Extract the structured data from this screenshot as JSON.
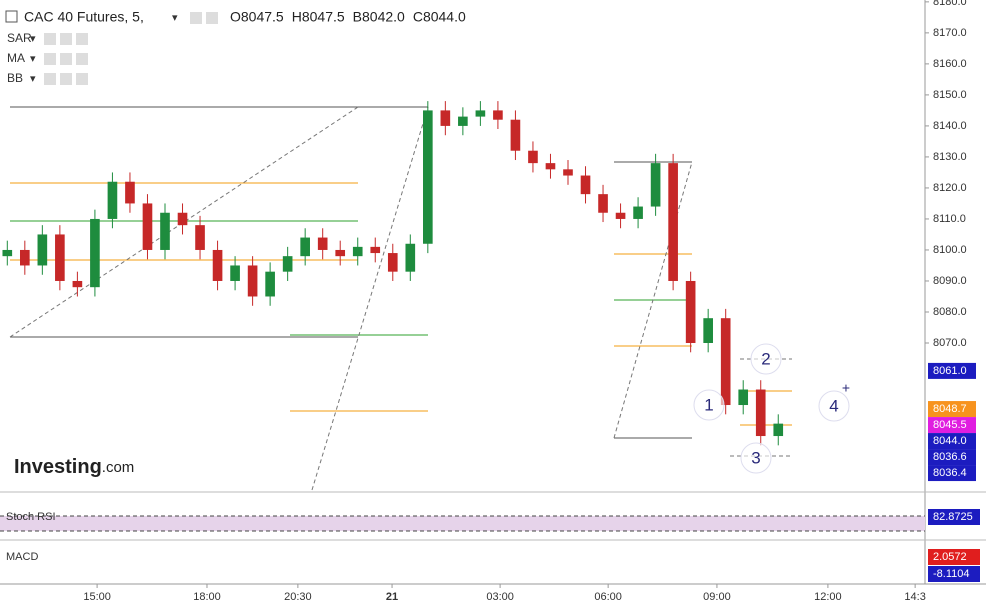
{
  "chart_data": {
    "type": "candlestick",
    "title": "CAC 40 Futures, 5,",
    "ohlc_header": [
      "O8047.5",
      "H8047.5",
      "B8042.0",
      "C8044.0"
    ],
    "indicators": [
      "SAR",
      "MA",
      "BB"
    ],
    "brand": [
      "Investing",
      ".com"
    ],
    "annotations": [
      "1",
      "2",
      "3",
      "4"
    ],
    "up_color": "#1e8c3e",
    "down_color": "#c62828",
    "x": [
      0.2,
      0.68,
      1.16,
      1.64,
      2.12,
      2.6,
      3.08,
      3.56,
      4.04,
      4.52,
      5,
      5.48,
      5.96,
      6.44,
      6.92,
      7.4,
      7.88,
      8.36,
      8.84,
      9.32,
      9.8,
      10.28,
      10.76,
      11.24,
      11.72,
      12.2,
      12.68,
      13.16,
      13.64,
      14.12,
      14.6,
      15.08,
      15.56,
      16.04,
      16.52,
      17,
      17.48,
      17.96,
      18.44,
      18.92,
      19.4,
      19.88,
      20.36,
      20.84,
      21.32
    ],
    "open": [
      8098,
      8100,
      8095,
      8105,
      8090,
      8088,
      8110,
      8122,
      8115,
      8100,
      8112,
      8108,
      8100,
      8090,
      8095,
      8085,
      8093,
      8098,
      8104,
      8100,
      8098,
      8101,
      8099,
      8093,
      8102,
      8145,
      8140,
      8143,
      8145,
      8142,
      8132,
      8128,
      8126,
      8124,
      8118,
      8112,
      8110,
      8114,
      8128,
      8090,
      8070,
      8078,
      8050,
      8055,
      8040
    ],
    "high": [
      8103,
      8103,
      8108,
      8108,
      8093,
      8113,
      8125,
      8125,
      8118,
      8115,
      8115,
      8111,
      8103,
      8098,
      8098,
      8096,
      8101,
      8107,
      8107,
      8103,
      8104,
      8104,
      8102,
      8105,
      8148,
      8148,
      8146,
      8148,
      8148,
      8145,
      8135,
      8131,
      8129,
      8127,
      8121,
      8115,
      8117,
      8131,
      8131,
      8093,
      8081,
      8081,
      8058,
      8058,
      8047
    ],
    "low": [
      8095,
      8092,
      8092,
      8087,
      8085,
      8085,
      8107,
      8112,
      8097,
      8097,
      8105,
      8097,
      8087,
      8087,
      8082,
      8082,
      8090,
      8095,
      8097,
      8095,
      8095,
      8096,
      8090,
      8090,
      8099,
      8137,
      8137,
      8140,
      8139,
      8129,
      8125,
      8123,
      8121,
      8115,
      8109,
      8107,
      8107,
      8111,
      8087,
      8067,
      8067,
      8047,
      8047,
      8037,
      8037
    ],
    "close": [
      8100,
      8095,
      8105,
      8090,
      8088,
      8110,
      8122,
      8115,
      8100,
      8112,
      8108,
      8100,
      8090,
      8095,
      8085,
      8093,
      8098,
      8104,
      8100,
      8098,
      8101,
      8099,
      8093,
      8102,
      8145,
      8140,
      8143,
      8145,
      8142,
      8132,
      8128,
      8126,
      8124,
      8118,
      8112,
      8110,
      8114,
      8128,
      8090,
      8070,
      8078,
      8050,
      8055,
      8040,
      8044
    ],
    "xlim": [
      0,
      25.34
    ],
    "xticks": [
      {
        "value": 2.66,
        "label": "15:00"
      },
      {
        "value": 5.67,
        "label": "18:00"
      },
      {
        "value": 8.16,
        "label": "20:30"
      },
      {
        "value": 10.74,
        "label": "21"
      },
      {
        "value": 13.7,
        "label": "03:00"
      },
      {
        "value": 16.66,
        "label": "06:00"
      },
      {
        "value": 19.64,
        "label": "09:00"
      },
      {
        "value": 22.68,
        "label": "12:00"
      },
      {
        "value": 25.07,
        "label": "14:3"
      }
    ],
    "ylim": [
      8022.6,
      8180.6
    ],
    "yticks": [
      {
        "value": 8180,
        "label": "8180.0"
      },
      {
        "value": 8170,
        "label": "8170.0"
      },
      {
        "value": 8160,
        "label": "8160.0"
      },
      {
        "value": 8150,
        "label": "8150.0"
      },
      {
        "value": 8140,
        "label": "8140.0"
      },
      {
        "value": 8130,
        "label": "8130.0"
      },
      {
        "value": 8120,
        "label": "8120.0"
      },
      {
        "value": 8110,
        "label": "8110.0"
      },
      {
        "value": 8100,
        "label": "8100.0"
      },
      {
        "value": 8090,
        "label": "8090.0"
      },
      {
        "value": 8080,
        "label": "8080.0"
      },
      {
        "value": 8070,
        "label": "8070.0"
      }
    ],
    "price_tags": [
      {
        "value": 8061,
        "label": "8061.0",
        "color": "#1c1cc0"
      },
      {
        "value": 8048.7,
        "label": "8048.7",
        "color": "#f7931e"
      },
      {
        "value": 8045.5,
        "label": "8045.5",
        "color": "#e01ee0"
      },
      {
        "value": 8044,
        "label": "8044.0",
        "color": "#1c1cc0"
      },
      {
        "value": 8036.6,
        "label": "8036.6",
        "color": "#1c1cc0"
      },
      {
        "value": 8036.4,
        "label": "8036.4",
        "color": "#1c1cc0"
      }
    ],
    "panels": [
      {
        "name": "Stoch RSI",
        "tags": [
          82.8725
        ],
        "tag_colors": [
          "#1c1cc0"
        ]
      },
      {
        "name": "MACD",
        "tags": [
          2.0572,
          -8.1104
        ],
        "tag_colors": [
          "#e01e1e",
          "#1c1cc0"
        ]
      }
    ]
  }
}
